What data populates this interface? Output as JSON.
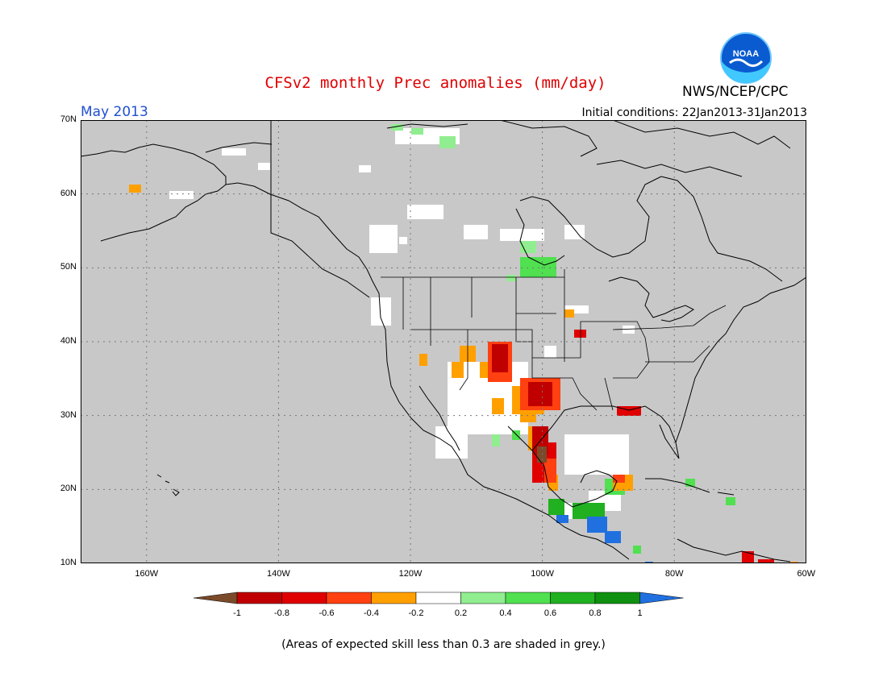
{
  "title": "CFSv2 monthly Prec anomalies (mm/day)",
  "agency": "NWS/NCEP/CPC",
  "logo_text": "NOAA",
  "month": "May 2013",
  "initial_conditions": "Initial conditions: 22Jan2013-31Jan2013",
  "footnote": "(Areas of expected skill less than 0.3 are shaded in grey.)",
  "map": {
    "lon_range": [
      -170,
      -60
    ],
    "lat_range": [
      10,
      70
    ],
    "lat_labels": [
      "70N",
      "60N",
      "50N",
      "40N",
      "30N",
      "20N",
      "10N"
    ],
    "lon_labels": [
      "160W",
      "140W",
      "120W",
      "100W",
      "80W",
      "60W"
    ],
    "background_color": "#c8c8c8",
    "grid": "dotted"
  },
  "legend": {
    "labels": [
      "-1",
      "-0.8",
      "-0.6",
      "-0.4",
      "-0.2",
      "0.2",
      "0.4",
      "0.6",
      "0.8",
      "1"
    ],
    "colors": [
      "#7a4a2a",
      "#c00000",
      "#e00000",
      "#ff4010",
      "#ffa000",
      "#ffffff",
      "#90ee90",
      "#50e050",
      "#20b020",
      "#109010",
      "#2070e0"
    ]
  },
  "colors": {
    "grey": "#c8c8c8",
    "white": "#ffffff",
    "brown": "#7a4a2a",
    "dkred": "#c00000",
    "red": "#e00000",
    "orred": "#ff4010",
    "orange": "#ffa000",
    "ltgreen": "#90ee90",
    "green": "#50e050",
    "mdgreen": "#20b020",
    "dkgreen": "#109010",
    "blue": "#2070e0"
  }
}
